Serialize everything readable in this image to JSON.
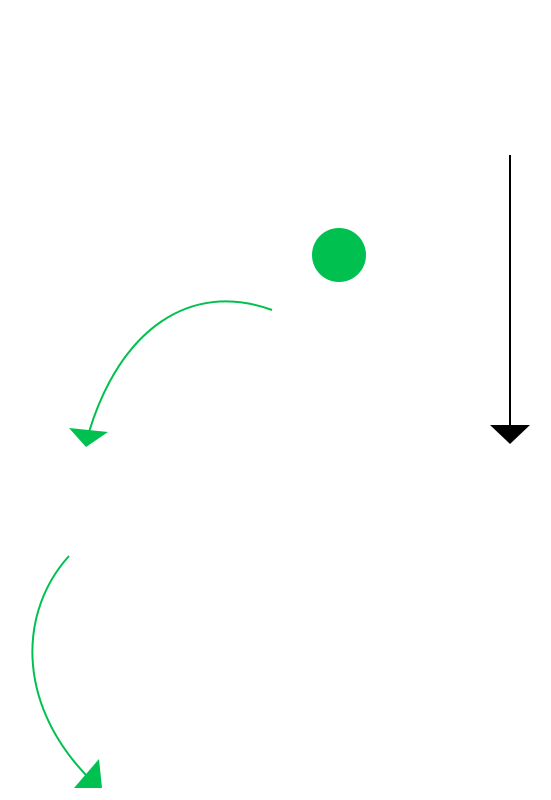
{
  "diagram": {
    "description_visible_text": "",
    "colors": {
      "background": "#ffffff",
      "accent_green": "#00c050",
      "arrow_black": "#000000"
    },
    "elements": [
      {
        "kind": "circle",
        "name": "green-dot"
      },
      {
        "kind": "curved-arrow",
        "name": "curved-arrow-upper"
      },
      {
        "kind": "curved-arrow",
        "name": "curved-arrow-lower"
      },
      {
        "kind": "straight-arrow",
        "name": "vertical-arrow-down"
      }
    ]
  }
}
